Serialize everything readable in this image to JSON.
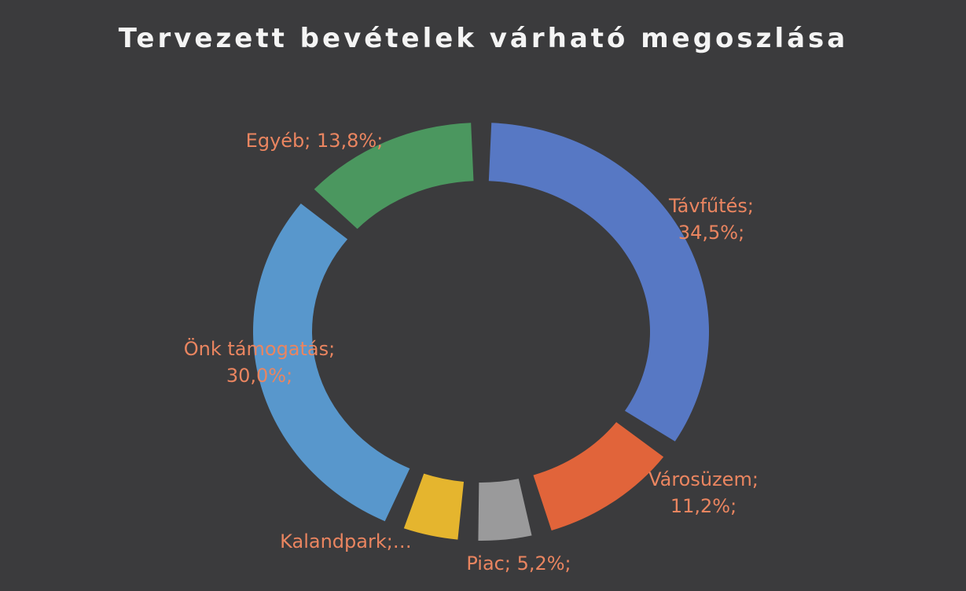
{
  "chart_data": {
    "type": "donut",
    "title": "Tervezett bevételek várható megoszlása",
    "values": [
      34.5,
      11.2,
      5.2,
      5.3,
      30.0,
      13.8
    ],
    "value_labels": [
      [
        "Távfűtés;",
        "34,5%;"
      ],
      [
        "Városüzem;",
        "11,2%;"
      ],
      [
        "Piac; 5,2%;"
      ],
      [
        "Kalandpark;…"
      ],
      [
        "Önk támogatás;",
        "30,0%;"
      ],
      [
        "Egyéb; 13,8%;"
      ]
    ],
    "colors": [
      "#5a7ecf",
      "#f0683a",
      "#a3a3a3",
      "#f4c02c",
      "#5b9fd8",
      "#4d9f62"
    ]
  }
}
